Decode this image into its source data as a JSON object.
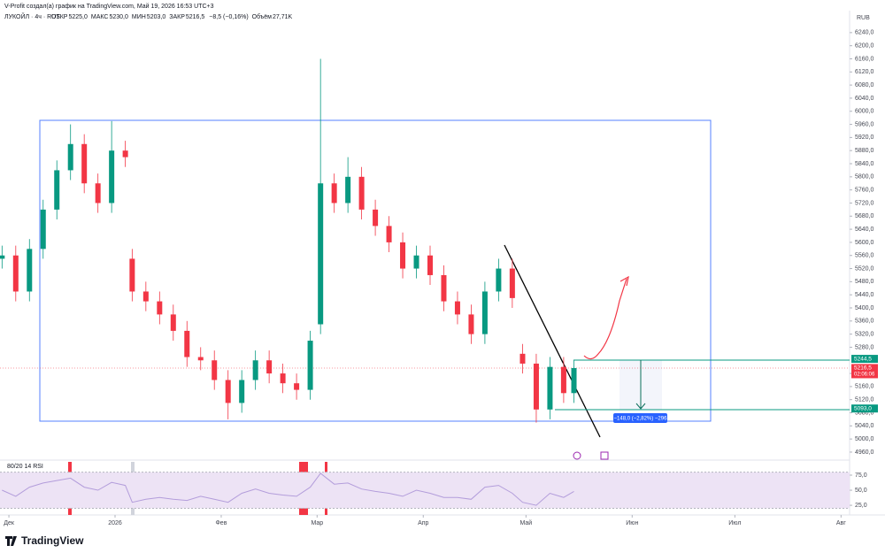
{
  "header": "V-Profit создал(а) график на TradingView.com, Май 19, 2026 16:53 UTC+3",
  "symbol": "ЛУКОЙЛ · 4ч · RUS",
  "legend_info": [
    {
      "label": "ОТКР",
      "value": "5225,0"
    },
    {
      "label": "МАКС",
      "value": "5230,0"
    },
    {
      "label": "МИН",
      "value": "5203,0"
    },
    {
      "label": "ЗАКР",
      "value": "5216,5"
    },
    {
      "label": "",
      "value": "−8,5 (−0,16%)"
    },
    {
      "label": "Объём",
      "value": "27,71K"
    }
  ],
  "currency": "RUB",
  "brand": "TradingView",
  "chart_data": [
    {
      "type": "candlestick",
      "x": [
        -2,
        2,
        6,
        10,
        14,
        18,
        22,
        26,
        30,
        34,
        36,
        40,
        44,
        48,
        52,
        56,
        60,
        64,
        68,
        72,
        76,
        80,
        84,
        88,
        91,
        95,
        99,
        103,
        107,
        111,
        115,
        119,
        123,
        127,
        131,
        135,
        139,
        143,
        147,
        150,
        154,
        158,
        162,
        165
      ],
      "open": [
        5550,
        5560,
        5450,
        5580,
        5700,
        5820,
        5900,
        5780,
        5720,
        5880,
        5550,
        5450,
        5420,
        5380,
        5330,
        5250,
        5240,
        5180,
        5110,
        5180,
        5240,
        5200,
        5170,
        5150,
        5350,
        5780,
        5720,
        5800,
        5700,
        5650,
        5600,
        5520,
        5560,
        5500,
        5420,
        5380,
        5320,
        5450,
        5520,
        5260,
        5230,
        5090,
        5220,
        5140
      ],
      "high": [
        5590,
        5590,
        5610,
        5730,
        5850,
        5960,
        5930,
        5810,
        5970,
        5910,
        5580,
        5480,
        5450,
        5410,
        5360,
        5280,
        5270,
        5210,
        5210,
        5270,
        5270,
        5230,
        5200,
        5330,
        6160,
        5810,
        5860,
        5830,
        5730,
        5680,
        5630,
        5590,
        5590,
        5530,
        5450,
        5410,
        5480,
        5550,
        5550,
        5290,
        5260,
        5250,
        5250,
        5240
      ],
      "low": [
        5520,
        5420,
        5420,
        5550,
        5670,
        5790,
        5750,
        5690,
        5690,
        5830,
        5420,
        5390,
        5350,
        5300,
        5220,
        5210,
        5150,
        5060,
        5080,
        5150,
        5170,
        5140,
        5120,
        5120,
        5320,
        5690,
        5690,
        5670,
        5620,
        5570,
        5490,
        5490,
        5470,
        5390,
        5350,
        5290,
        5290,
        5420,
        5400,
        5200,
        5050,
        5060,
        5110,
        5110
      ],
      "close": [
        5560,
        5450,
        5580,
        5700,
        5820,
        5900,
        5780,
        5720,
        5880,
        5860,
        5450,
        5420,
        5380,
        5330,
        5250,
        5240,
        5180,
        5110,
        5180,
        5240,
        5200,
        5170,
        5150,
        5300,
        5780,
        5720,
        5800,
        5700,
        5650,
        5600,
        5520,
        5560,
        5500,
        5420,
        5380,
        5320,
        5450,
        5520,
        5430,
        5230,
        5090,
        5220,
        5140,
        5216.5
      ],
      "up_color": "#089981",
      "down_color": "#f23645",
      "xlim": [
        -2.6,
        245.5
      ],
      "xticks": [
        {
          "value": 0,
          "label": "Дек"
        },
        {
          "value": 31,
          "label": "2026"
        },
        {
          "value": 62,
          "label": "Фев"
        },
        {
          "value": 90,
          "label": "Мар"
        },
        {
          "value": 121,
          "label": "Апр"
        },
        {
          "value": 151,
          "label": "Май"
        },
        {
          "value": 182,
          "label": "Июн"
        },
        {
          "value": 212,
          "label": "Июл"
        },
        {
          "value": 243,
          "label": "Авг"
        }
      ],
      "ylim": [
        4941,
        6299
      ],
      "yticks": [
        {
          "value": 4960,
          "label": "4960,0"
        },
        {
          "value": 5000,
          "label": "5000,0"
        },
        {
          "value": 5040,
          "label": "5040,0"
        },
        {
          "value": 5080,
          "label": "5080,0"
        },
        {
          "value": 5120,
          "label": "5120,0"
        },
        {
          "value": 5160,
          "label": "5160,0"
        },
        {
          "value": 5200,
          "label": "5200,0"
        },
        {
          "value": 5280,
          "label": "5280,0"
        },
        {
          "value": 5320,
          "label": "5320,0"
        },
        {
          "value": 5360,
          "label": "5360,0"
        },
        {
          "value": 5400,
          "label": "5400,0"
        },
        {
          "value": 5440,
          "label": "5440,0"
        },
        {
          "value": 5480,
          "label": "5480,0"
        },
        {
          "value": 5520,
          "label": "5520,0"
        },
        {
          "value": 5560,
          "label": "5560,0"
        },
        {
          "value": 5600,
          "label": "5600,0"
        },
        {
          "value": 5640,
          "label": "5640,0"
        },
        {
          "value": 5680,
          "label": "5680,0"
        },
        {
          "value": 5720,
          "label": "5720,0"
        },
        {
          "value": 5760,
          "label": "5760,0"
        },
        {
          "value": 5800,
          "label": "5800,0"
        },
        {
          "value": 5840,
          "label": "5840,0"
        },
        {
          "value": 5880,
          "label": "5880,0"
        },
        {
          "value": 5920,
          "label": "5920,0"
        },
        {
          "value": 5960,
          "label": "5960,0"
        },
        {
          "value": 6000,
          "label": "6000,0"
        },
        {
          "value": 6040,
          "label": "6040,0"
        },
        {
          "value": 6080,
          "label": "6080,0"
        },
        {
          "value": 6120,
          "label": "6120,0"
        },
        {
          "value": 6160,
          "label": "6160,0"
        },
        {
          "value": 6200,
          "label": "6200,0"
        },
        {
          "value": 6240,
          "label": "6240,0"
        }
      ],
      "price_tags": [
        {
          "value": 5244.5,
          "label": "5244,5",
          "color": "#089981"
        },
        {
          "value": 5216.5,
          "label": "5216,5",
          "sub": "02:06:06",
          "color": "#f23645"
        },
        {
          "value": 5093,
          "label": "5093,0",
          "color": "#089981"
        }
      ],
      "measure_label": "−148,0 (−2,82%) −296"
    },
    {
      "type": "line",
      "title": "80/20 14 RSI",
      "x": [
        -2,
        2,
        6,
        10,
        14,
        18,
        22,
        26,
        30,
        34,
        36,
        40,
        44,
        48,
        52,
        56,
        60,
        64,
        68,
        72,
        76,
        80,
        84,
        88,
        91,
        95,
        99,
        103,
        107,
        111,
        115,
        119,
        123,
        127,
        131,
        135,
        139,
        143,
        147,
        150,
        154,
        158,
        162,
        165
      ],
      "values": [
        50,
        40,
        55,
        62,
        66,
        70,
        55,
        50,
        63,
        58,
        30,
        35,
        38,
        35,
        33,
        40,
        35,
        30,
        45,
        52,
        45,
        42,
        40,
        55,
        78,
        60,
        62,
        52,
        48,
        45,
        40,
        50,
        45,
        38,
        38,
        35,
        55,
        58,
        45,
        30,
        25,
        45,
        38,
        48
      ],
      "color": "#b39ddb",
      "band": [
        20,
        80
      ],
      "band_color": "#ede3f5",
      "ylim": [
        9,
        97
      ],
      "yticks": [
        {
          "value": 25,
          "label": "25,0"
        },
        {
          "value": 50,
          "label": "50,0"
        },
        {
          "value": 75,
          "label": "75,0"
        }
      ]
    }
  ]
}
